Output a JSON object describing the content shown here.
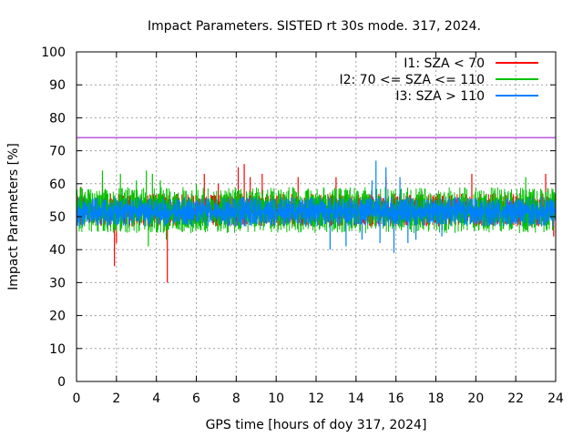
{
  "chart_data": {
    "type": "line",
    "title": "Impact Parameters. SISTED rt 30s mode. 317, 2024.",
    "xlabel": "GPS time [hours of doy 317, 2024]",
    "ylabel": "Impact Parameters [%]",
    "xlim": [
      0,
      24
    ],
    "ylim": [
      0,
      100
    ],
    "xticks": [
      "0",
      "2",
      "4",
      "6",
      "8",
      "10",
      "12",
      "14",
      "16",
      "18",
      "20",
      "22",
      "24"
    ],
    "yticks": [
      "0",
      "10",
      "20",
      "30",
      "40",
      "50",
      "60",
      "70",
      "80",
      "90",
      "100"
    ],
    "grid": true,
    "legend_position": "top-right",
    "reference_line": {
      "value": 74,
      "color": "#9400d3"
    },
    "series": [
      {
        "name": "I1: SZA < 70",
        "color": "#ff0000",
        "typical_range": [
          47,
          57
        ],
        "x": [
          0.2,
          1.3,
          1.9,
          2.0,
          4.55,
          6.4,
          7.1,
          8.1,
          8.4,
          8.7,
          9.3,
          11.1,
          13.0,
          15.5,
          19.8,
          23.5,
          23.9
        ],
        "y": [
          59,
          61,
          35,
          42,
          30,
          63,
          60,
          65,
          66,
          62,
          63,
          62,
          62,
          62,
          63,
          63,
          44
        ]
      },
      {
        "name": "I2: 70 <= SZA <= 110",
        "color": "#00c000",
        "typical_range": [
          45,
          59
        ],
        "x": [
          0.4,
          1.3,
          2.2,
          3.0,
          3.5,
          3.6,
          3.8,
          4.2,
          4.5,
          6.0,
          22.5,
          23.3
        ],
        "y": [
          55,
          64,
          63,
          61,
          64,
          41,
          63,
          61,
          43,
          60,
          62,
          58
        ]
      },
      {
        "name": "I3: SZA > 110",
        "color": "#0080ff",
        "typical_range": [
          47,
          56
        ],
        "x": [
          12.7,
          13.5,
          14.3,
          14.8,
          15.0,
          15.2,
          15.5,
          15.9,
          16.2,
          16.6,
          17.0,
          18.3
        ],
        "y": [
          40,
          41,
          43,
          61,
          67,
          42,
          65,
          39,
          62,
          42,
          43,
          44
        ]
      }
    ]
  }
}
